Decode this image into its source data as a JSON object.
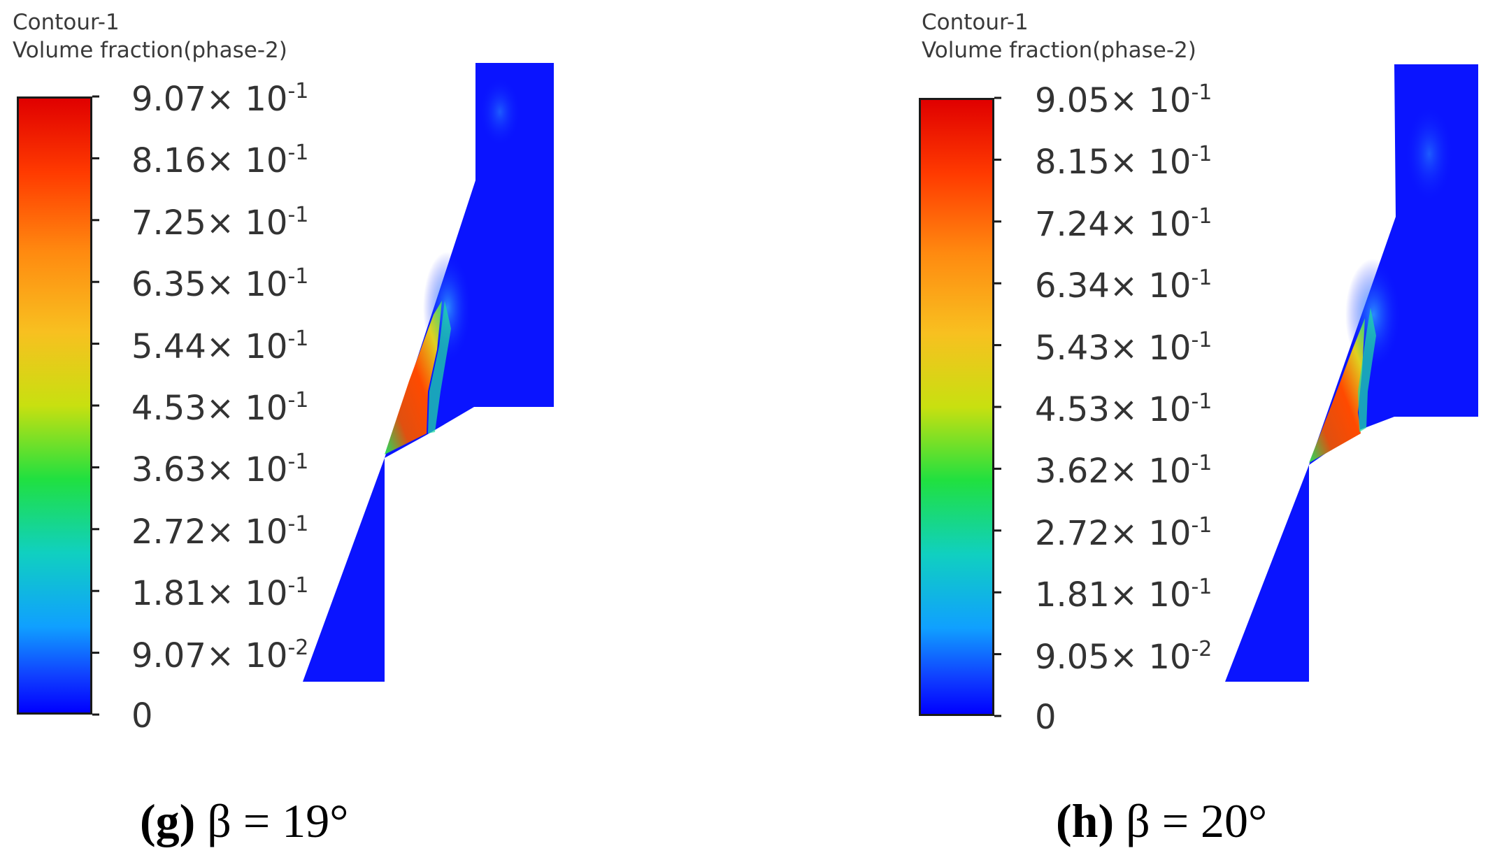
{
  "panels": [
    {
      "id": "g",
      "title_line1": "Contour-1",
      "title_line2": "Volume fraction(phase-2)",
      "ticks": [
        {
          "mantissa": "9.07× 10",
          "exp": "-1"
        },
        {
          "mantissa": "8.16× 10",
          "exp": "-1"
        },
        {
          "mantissa": "7.25× 10",
          "exp": "-1"
        },
        {
          "mantissa": "6.35× 10",
          "exp": "-1"
        },
        {
          "mantissa": "5.44× 10",
          "exp": "-1"
        },
        {
          "mantissa": "4.53× 10",
          "exp": "-1"
        },
        {
          "mantissa": "3.63× 10",
          "exp": "-1"
        },
        {
          "mantissa": "2.72× 10",
          "exp": "-1"
        },
        {
          "mantissa": "1.81× 10",
          "exp": "-1"
        },
        {
          "mantissa": "9.07× 10",
          "exp": "-2"
        },
        {
          "mantissa": "0",
          "exp": ""
        }
      ],
      "caption_letter": "(g)",
      "caption_text": " β = 19°"
    },
    {
      "id": "h",
      "title_line1": "Contour-1",
      "title_line2": "Volume fraction(phase-2)",
      "ticks": [
        {
          "mantissa": "9.05× 10",
          "exp": "-1"
        },
        {
          "mantissa": "8.15× 10",
          "exp": "-1"
        },
        {
          "mantissa": "7.24× 10",
          "exp": "-1"
        },
        {
          "mantissa": "6.34× 10",
          "exp": "-1"
        },
        {
          "mantissa": "5.43× 10",
          "exp": "-1"
        },
        {
          "mantissa": "4.53× 10",
          "exp": "-1"
        },
        {
          "mantissa": "3.62× 10",
          "exp": "-1"
        },
        {
          "mantissa": "2.72× 10",
          "exp": "-1"
        },
        {
          "mantissa": "1.81× 10",
          "exp": "-1"
        },
        {
          "mantissa": "9.05× 10",
          "exp": "-2"
        },
        {
          "mantissa": "0",
          "exp": ""
        }
      ],
      "caption_letter": "(h)",
      "caption_text": " β = 20°"
    }
  ],
  "colors": {
    "background_phase": "#0a14ff",
    "high": "#e00000",
    "low": "#0000ff"
  }
}
